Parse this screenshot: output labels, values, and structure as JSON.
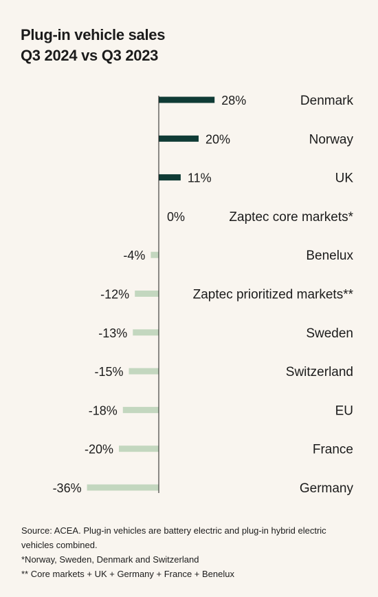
{
  "chart_data": {
    "type": "bar",
    "orientation": "horizontal",
    "title_lines": [
      "Plug-in vehicle sales",
      "Q3 2024 vs Q3 2023"
    ],
    "categories": [
      "Denmark",
      "Norway",
      "UK",
      "Zaptec core markets*",
      "Benelux",
      "Zaptec prioritized markets**",
      "Sweden",
      "Switzerland",
      "EU",
      "France",
      "Germany"
    ],
    "values": [
      28,
      20,
      11,
      0,
      -4,
      -12,
      -13,
      -15,
      -18,
      -20,
      -36
    ],
    "value_labels": [
      "28%",
      "20%",
      "11%",
      "0%",
      "-4%",
      "-12%",
      "-13%",
      "-15%",
      "-18%",
      "-20%",
      "-36%"
    ],
    "unit": "%",
    "colors": {
      "positive": "#0f3b35",
      "negative": "#c3d7bf",
      "axis": "#1b1b1b"
    },
    "grid": false,
    "legend": "none"
  },
  "footnotes": [
    "Source: ACEA. Plug-in vehicles are battery electric and plug-in hybrid electric vehicles combined.",
    " *Norway, Sweden, Denmark and Switzerland",
    "** Core markets + UK + Germany + France + Benelux"
  ]
}
